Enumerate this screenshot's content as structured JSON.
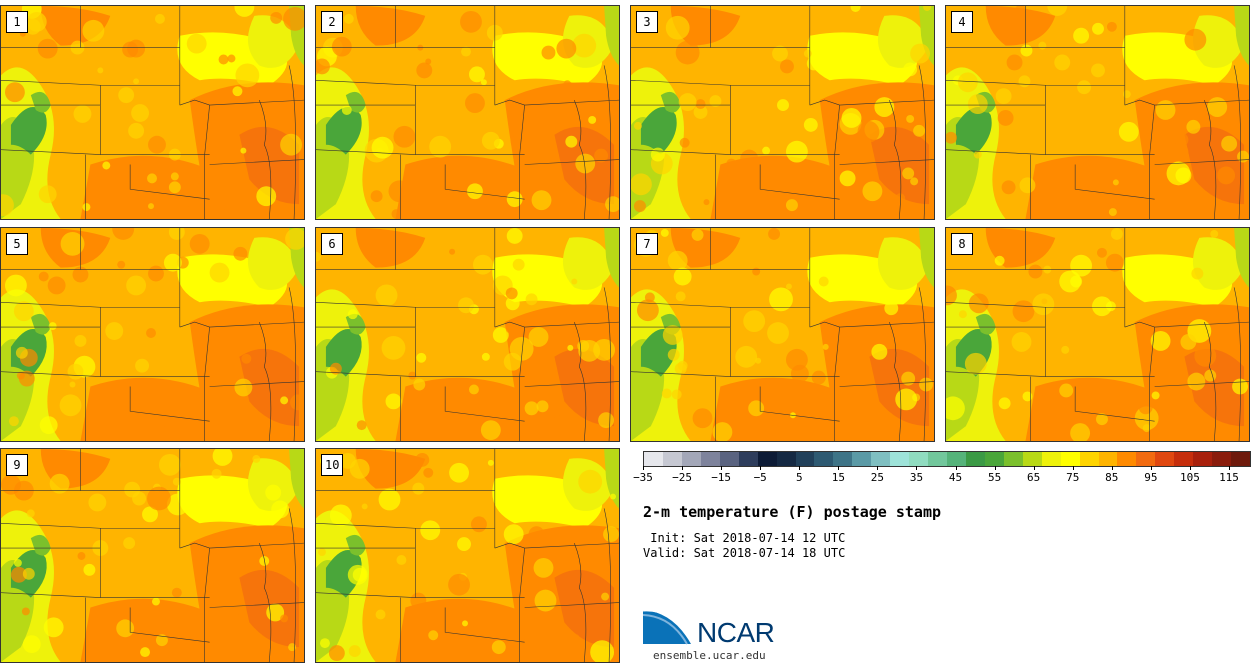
{
  "panels": [
    {
      "label": "1"
    },
    {
      "label": "2"
    },
    {
      "label": "3"
    },
    {
      "label": "4"
    },
    {
      "label": "5"
    },
    {
      "label": "6"
    },
    {
      "label": "7"
    },
    {
      "label": "8"
    },
    {
      "label": "9"
    },
    {
      "label": "10"
    }
  ],
  "colorbar": {
    "colors": [
      "#e6e7ec",
      "#c6c8d2",
      "#a3a7b8",
      "#7e839c",
      "#5a6380",
      "#2e3d5c",
      "#0d1b36",
      "#152943",
      "#21405a",
      "#2e5a72",
      "#3e7487",
      "#5b9aa6",
      "#7fbfc1",
      "#9ee3d9",
      "#90dcc0",
      "#72c79c",
      "#55b37a",
      "#3b9a45",
      "#4aa63a",
      "#7bc02c",
      "#b8d916",
      "#eef20b",
      "#ffff00",
      "#ffd400",
      "#ffb400",
      "#ff8a00",
      "#f26b10",
      "#e04810",
      "#c62e0c",
      "#a8200c",
      "#8a1c0c",
      "#6e1a0c"
    ],
    "tick_labels": [
      "−35",
      "−25",
      "−15",
      "−5",
      "5",
      "15",
      "25",
      "35",
      "45",
      "55",
      "65",
      "75",
      "85",
      "95",
      "105",
      "115"
    ]
  },
  "title": "2-m temperature (F) postage stamp",
  "init_text": " Init: Sat 2018-07-14 12 UTC",
  "valid_text": "Valid: Sat 2018-07-14 18 UTC",
  "logo": {
    "text": "NCAR",
    "url_text": "ensemble.ucar.edu"
  }
}
